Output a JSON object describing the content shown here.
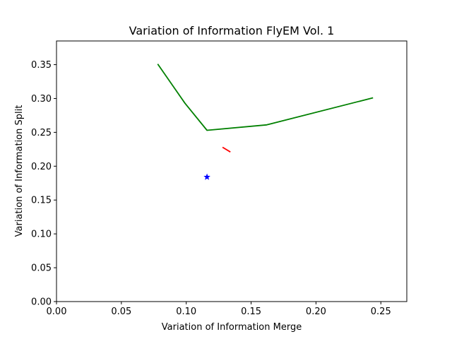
{
  "chart_data": {
    "type": "line",
    "title": "Variation of Information FlyEM Vol. 1",
    "xlabel": "Variation of Information Merge",
    "ylabel": "Variation of Information Split",
    "xlim": [
      0.0,
      0.27
    ],
    "ylim": [
      0.0,
      0.385
    ],
    "grid": false,
    "x_ticks": [
      "0.00",
      "0.05",
      "0.10",
      "0.15",
      "0.20",
      "0.25"
    ],
    "y_ticks": [
      "0.00",
      "0.05",
      "0.10",
      "0.15",
      "0.20",
      "0.25",
      "0.30",
      "0.35"
    ],
    "series": [
      {
        "style": "line",
        "color": "#008000",
        "points": [
          {
            "x": 0.078,
            "y": 0.351
          },
          {
            "x": 0.099,
            "y": 0.293
          },
          {
            "x": 0.116,
            "y": 0.253
          },
          {
            "x": 0.162,
            "y": 0.261
          },
          {
            "x": 0.244,
            "y": 0.301
          }
        ]
      },
      {
        "style": "line",
        "color": "#ff0000",
        "points": [
          {
            "x": 0.128,
            "y": 0.228
          },
          {
            "x": 0.134,
            "y": 0.221
          }
        ]
      },
      {
        "style": "marker-star",
        "color": "#0000ff",
        "points": [
          {
            "x": 0.116,
            "y": 0.184
          }
        ]
      }
    ]
  }
}
